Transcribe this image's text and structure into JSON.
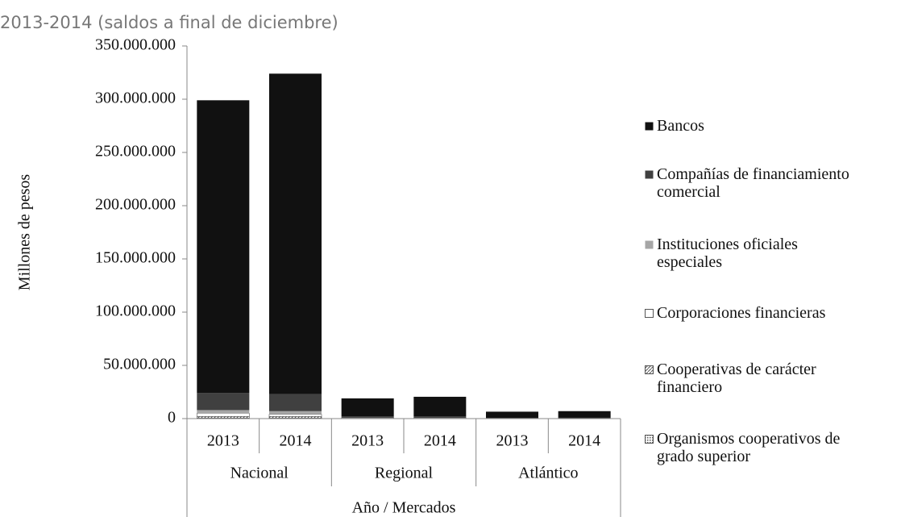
{
  "chart_data": {
    "type": "stacked_bar",
    "title": "2013-2014 (saldos a final de diciembre)",
    "y_label": "Millones de pesos",
    "x_label": "Año / Mercados",
    "categories": [
      "2013",
      "2014",
      "2013",
      "2014",
      "2013",
      "2014"
    ],
    "groups": [
      "Nacional",
      "Regional",
      "Atlántico"
    ],
    "series": [
      {
        "name": "Bancos",
        "color": "#111111",
        "values": [
          275000000,
          301000000,
          17000000,
          18500000,
          5800000,
          6200000
        ]
      },
      {
        "name": "Compañías de financiamiento comercial",
        "color": "#404040",
        "values": [
          16000000,
          16000000,
          1200000,
          1300000,
          500000,
          600000
        ]
      },
      {
        "name": "Instituciones oficiales especiales",
        "color": "#a6a6a6",
        "values": [
          3000000,
          3000000,
          300000,
          300000,
          100000,
          100000
        ]
      },
      {
        "name": "Corporaciones financieras",
        "color": "#ffffff",
        "values": [
          3000000,
          2000000,
          200000,
          200000,
          50000,
          50000
        ]
      },
      {
        "name": "Cooperativas de carácter financiero",
        "color": "#bfbfbf",
        "pattern": "diagonal",
        "values": [
          1500000,
          1500000,
          200000,
          100000,
          30000,
          30000
        ]
      },
      {
        "name": "Organismos cooperativos de grado superior",
        "color": "#bfbfbf",
        "pattern": "grid",
        "values": [
          500000,
          500000,
          100000,
          100000,
          20000,
          20000
        ]
      }
    ],
    "stack_order": "last_series_bottom",
    "ylim": [
      0,
      350000000
    ],
    "yticks": [
      0,
      {
        "value": 50000000,
        "label": "50.000.000"
      },
      {
        "value": 100000000,
        "label": "100.000.000"
      },
      {
        "value": 150000000,
        "label": "150.000.000"
      },
      {
        "value": 200000000,
        "label": "200.000.000"
      },
      {
        "value": 250000000,
        "label": "250.000.000"
      },
      {
        "value": 300000000,
        "label": "300.000.000"
      },
      {
        "value": 350000000,
        "label": "350.000.000"
      }
    ],
    "legend": "right"
  }
}
